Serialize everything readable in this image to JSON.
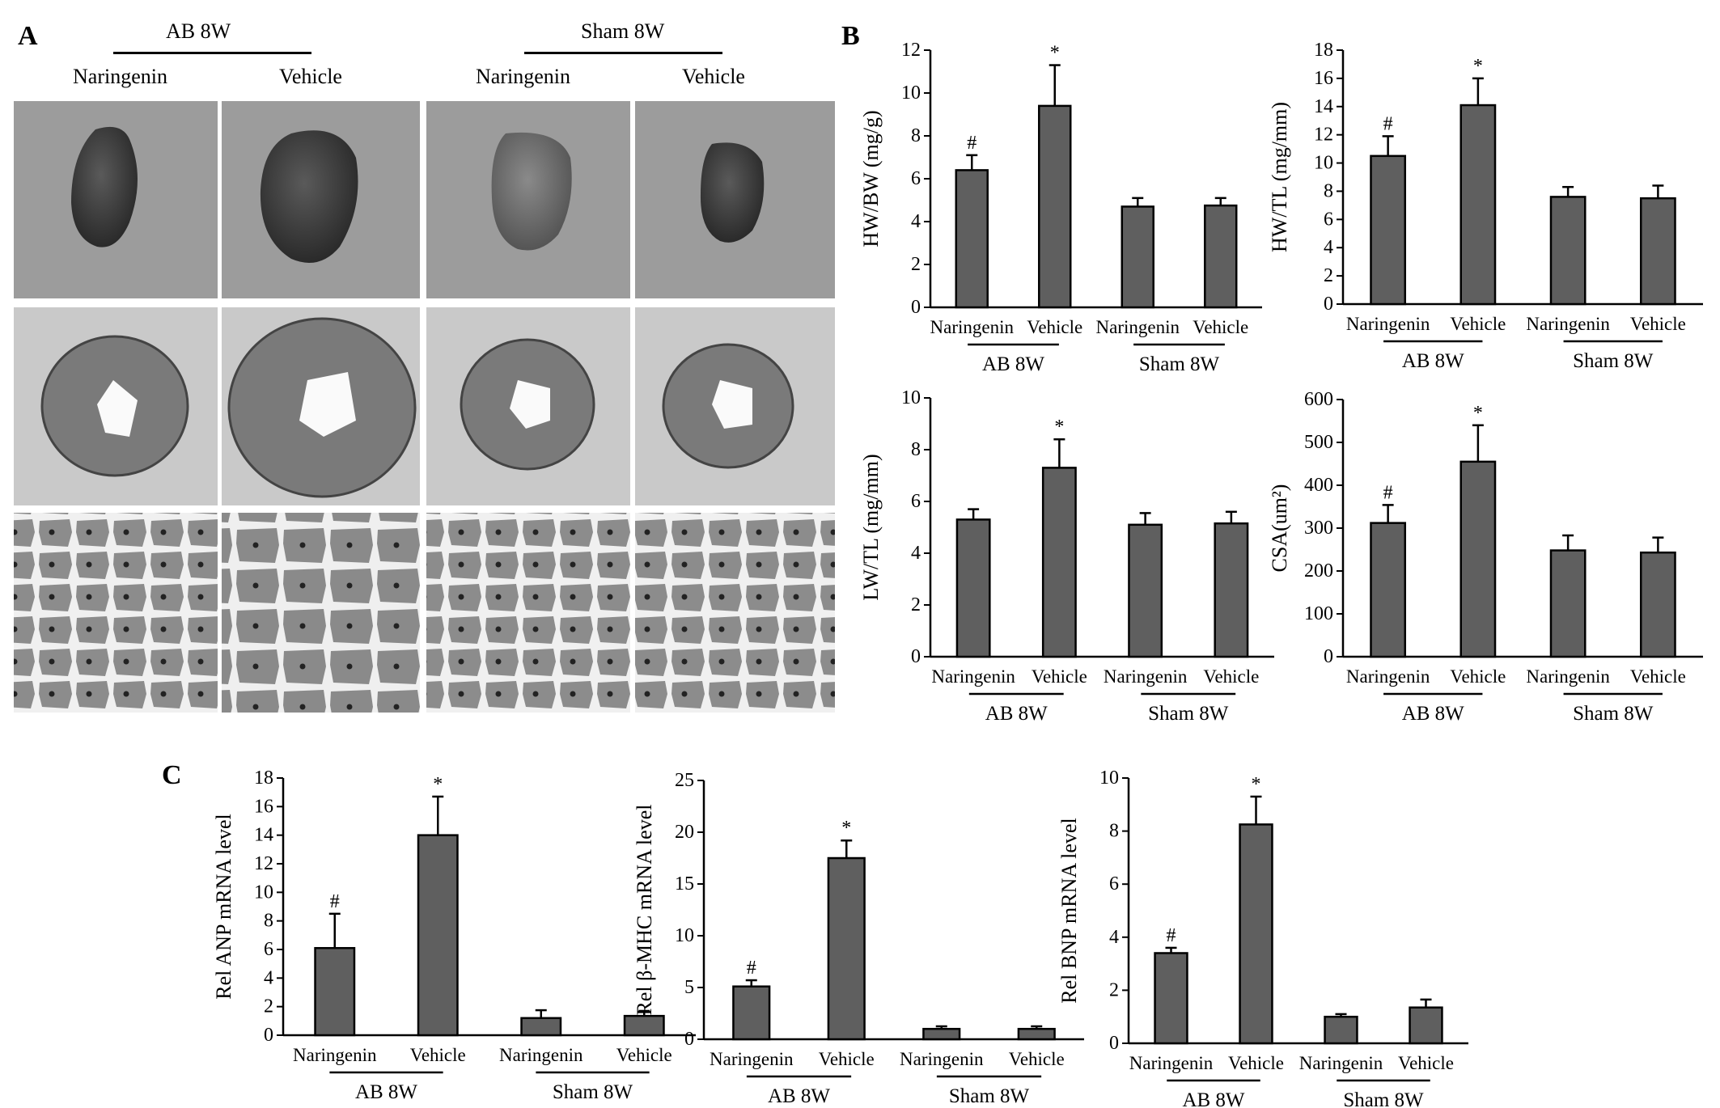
{
  "panel_labels": {
    "a": "A",
    "b": "B",
    "c": "C"
  },
  "panel_a": {
    "group1": "AB   8W",
    "group2": "Sham 8W",
    "columns": [
      "Naringenin",
      "Vehicle",
      "Naringenin",
      "Vehicle"
    ],
    "rows": [
      "whole-heart",
      "cross-section",
      "histology"
    ]
  },
  "colors": {
    "bar": "#5f5f5f",
    "photo_bg1": "#9a9a9a",
    "photo_bg2": "#c8c8c8"
  },
  "chart_data": [
    {
      "id": "hwbw",
      "type": "bar",
      "ylabel": "HW/BW (mg/g)",
      "ylim": [
        0,
        12
      ],
      "yticks": [
        0,
        2,
        4,
        6,
        8,
        10,
        12
      ],
      "categories": [
        "Naringenin",
        "Vehicle",
        "Naringenin",
        "Vehicle"
      ],
      "values": [
        6.4,
        9.4,
        4.7,
        4.75
      ],
      "errors": [
        0.7,
        1.9,
        0.4,
        0.35
      ],
      "marks": [
        "#",
        "*",
        "",
        ""
      ],
      "groups": [
        "AB   8W",
        "Sham 8W"
      ]
    },
    {
      "id": "hwtl",
      "type": "bar",
      "ylabel": "HW/TL (mg/mm)",
      "ylim": [
        0,
        18
      ],
      "yticks": [
        0,
        2,
        4,
        6,
        8,
        10,
        12,
        14,
        16,
        18
      ],
      "categories": [
        "Naringenin",
        "Vehicle",
        "Naringenin",
        "Vehicle"
      ],
      "values": [
        10.5,
        14.1,
        7.6,
        7.5
      ],
      "errors": [
        1.4,
        1.9,
        0.7,
        0.9
      ],
      "marks": [
        "#",
        "*",
        "",
        ""
      ],
      "groups": [
        "AB   8W",
        "Sham 8W"
      ]
    },
    {
      "id": "lwtl",
      "type": "bar",
      "ylabel": "LW/TL (mg/mm)",
      "ylim": [
        0,
        10
      ],
      "yticks": [
        0,
        2,
        4,
        6,
        8,
        10
      ],
      "categories": [
        "Naringenin",
        "Vehicle",
        "Naringenin",
        "Vehicle"
      ],
      "values": [
        5.3,
        7.3,
        5.1,
        5.15
      ],
      "errors": [
        0.4,
        1.1,
        0.45,
        0.45
      ],
      "marks": [
        "",
        "*",
        "",
        ""
      ],
      "groups": [
        "AB   8W",
        "Sham 8W"
      ]
    },
    {
      "id": "csa",
      "type": "bar",
      "ylabel": "CSA(um²)",
      "ylim": [
        0,
        600
      ],
      "yticks": [
        0,
        100,
        200,
        300,
        400,
        500,
        600
      ],
      "categories": [
        "Naringenin",
        "Vehicle",
        "Naringenin",
        "Vehicle"
      ],
      "values": [
        312,
        455,
        248,
        243
      ],
      "errors": [
        42,
        85,
        35,
        35
      ],
      "marks": [
        "#",
        "*",
        "",
        ""
      ],
      "groups": [
        "AB   8W",
        "Sham 8W"
      ]
    },
    {
      "id": "anp",
      "type": "bar",
      "ylabel": "Rel ANP mRNA level",
      "ylim": [
        0,
        18
      ],
      "yticks": [
        0,
        2,
        4,
        6,
        8,
        10,
        12,
        14,
        16,
        18
      ],
      "categories": [
        "Naringenin",
        "Vehicle",
        "Naringenin",
        "Vehicle"
      ],
      "values": [
        6.1,
        14.0,
        1.2,
        1.35
      ],
      "errors": [
        2.4,
        2.7,
        0.55,
        0.35
      ],
      "marks": [
        "#",
        "*",
        "",
        ""
      ],
      "groups": [
        "AB   8W",
        "Sham 8W"
      ]
    },
    {
      "id": "bmhc",
      "type": "bar",
      "ylabel": "Rel β-MHC mRNA level",
      "ylim": [
        0,
        25
      ],
      "yticks": [
        0,
        5,
        10,
        15,
        20,
        25
      ],
      "categories": [
        "Naringenin",
        "Vehicle",
        "Naringenin",
        "Vehicle"
      ],
      "values": [
        5.1,
        17.5,
        1.0,
        1.0
      ],
      "errors": [
        0.6,
        1.7,
        0.25,
        0.25
      ],
      "marks": [
        "#",
        "*",
        "",
        ""
      ],
      "groups": [
        "AB   8W",
        "Sham 8W"
      ]
    },
    {
      "id": "bnp",
      "type": "bar",
      "ylabel": "Rel BNP mRNA level",
      "ylim": [
        0,
        10
      ],
      "yticks": [
        0,
        2,
        4,
        6,
        8,
        10
      ],
      "categories": [
        "Naringenin",
        "Vehicle",
        "Naringenin",
        "Vehicle"
      ],
      "values": [
        3.4,
        8.25,
        1.0,
        1.35
      ],
      "errors": [
        0.2,
        1.05,
        0.1,
        0.3
      ],
      "marks": [
        "#",
        "*",
        "",
        ""
      ],
      "groups": [
        "AB   8W",
        "Sham 8W"
      ]
    }
  ]
}
